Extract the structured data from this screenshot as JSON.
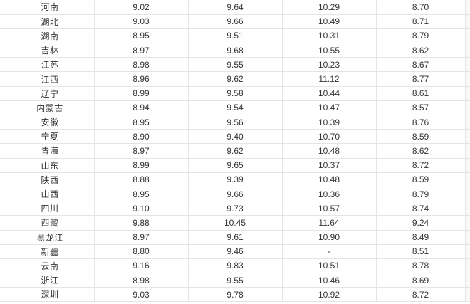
{
  "style": {
    "border_color": "#e5e5e5",
    "text_color": "#333333",
    "background": "#ffffff"
  },
  "chart_data": {
    "type": "table",
    "rows": [
      {
        "province": "河南",
        "values": [
          "9.02",
          "9.64",
          "10.29",
          "8.70"
        ]
      },
      {
        "province": "湖北",
        "values": [
          "9.03",
          "9.66",
          "10.49",
          "8.71"
        ]
      },
      {
        "province": "湖南",
        "values": [
          "8.95",
          "9.51",
          "10.31",
          "8.79"
        ]
      },
      {
        "province": "吉林",
        "values": [
          "8.97",
          "9.68",
          "10.55",
          "8.62"
        ]
      },
      {
        "province": "江苏",
        "values": [
          "8.98",
          "9.55",
          "10.23",
          "8.67"
        ]
      },
      {
        "province": "江西",
        "values": [
          "8.96",
          "9.62",
          "11.12",
          "8.77"
        ]
      },
      {
        "province": "辽宁",
        "values": [
          "8.99",
          "9.58",
          "10.44",
          "8.61"
        ]
      },
      {
        "province": "内蒙古",
        "values": [
          "8.94",
          "9.54",
          "10.47",
          "8.57"
        ]
      },
      {
        "province": "安徽",
        "values": [
          "8.95",
          "9.56",
          "10.39",
          "8.76"
        ]
      },
      {
        "province": "宁夏",
        "values": [
          "8.90",
          "9.40",
          "10.70",
          "8.59"
        ]
      },
      {
        "province": "青海",
        "values": [
          "8.97",
          "9.62",
          "10.48",
          "8.62"
        ]
      },
      {
        "province": "山东",
        "values": [
          "8.99",
          "9.65",
          "10.37",
          "8.72"
        ]
      },
      {
        "province": "陕西",
        "values": [
          "8.88",
          "9.39",
          "10.48",
          "8.59"
        ]
      },
      {
        "province": "山西",
        "values": [
          "8.95",
          "9.66",
          "10.36",
          "8.79"
        ]
      },
      {
        "province": "四川",
        "values": [
          "9.10",
          "9.73",
          "10.57",
          "8.74"
        ]
      },
      {
        "province": "西藏",
        "values": [
          "9.88",
          "10.45",
          "11.64",
          "9.24"
        ]
      },
      {
        "province": "黑龙江",
        "values": [
          "8.97",
          "9.61",
          "10.90",
          "8.49"
        ]
      },
      {
        "province": "新疆",
        "values": [
          "8.80",
          "9.46",
          "-",
          "8.51"
        ]
      },
      {
        "province": "云南",
        "values": [
          "9.16",
          "9.83",
          "10.51",
          "8.78"
        ]
      },
      {
        "province": "浙江",
        "values": [
          "8.98",
          "9.55",
          "10.46",
          "8.69"
        ]
      },
      {
        "province": "深圳",
        "values": [
          "9.03",
          "9.78",
          "10.92",
          "8.72"
        ]
      }
    ]
  }
}
